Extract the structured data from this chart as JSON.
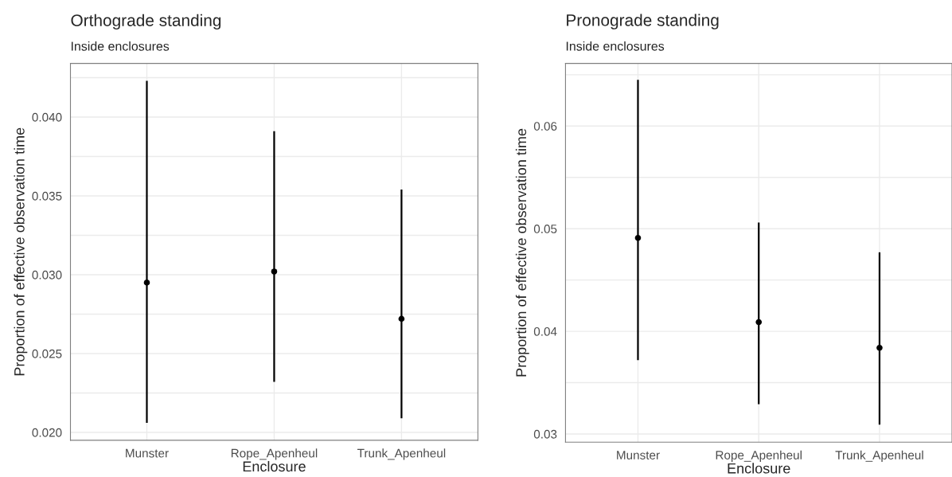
{
  "chart_data": [
    {
      "type": "scatter",
      "title": "Orthograde standing",
      "subtitle": "Inside enclosures",
      "xlabel": "Enclosure",
      "ylabel": "Proportion of effective observation time",
      "categories": [
        "Munster",
        "Rope_Apenheul",
        "Trunk_Apenheul"
      ],
      "series": [
        {
          "color": "#000000",
          "values": [
            0.0295,
            0.0302,
            0.0272
          ],
          "errors": [
            [
              0.0206,
              0.0423
            ],
            [
              0.0232,
              0.0391
            ],
            [
              0.0209,
              0.0354
            ]
          ]
        }
      ],
      "ylim": [
        0.0195,
        0.0434
      ],
      "yticks": [
        {
          "value": 0.02,
          "label": "0.020"
        },
        {
          "value": 0.025,
          "label": "0.025"
        },
        {
          "value": 0.03,
          "label": "0.030"
        },
        {
          "value": 0.035,
          "label": "0.035"
        },
        {
          "value": 0.04,
          "label": "0.040"
        }
      ],
      "grid": true,
      "marker": "circle"
    },
    {
      "type": "scatter",
      "title": "Pronograde standing",
      "subtitle": "Inside enclosures",
      "xlabel": "Enclosure",
      "ylabel": "Proportion of effective observation time",
      "categories": [
        "Munster",
        "Rope_Apenheul",
        "Trunk_Apenheul"
      ],
      "series": [
        {
          "color": "#000000",
          "values": [
            0.0491,
            0.0409,
            0.0384
          ],
          "errors": [
            [
              0.0372,
              0.0645
            ],
            [
              0.0329,
              0.0506
            ],
            [
              0.0309,
              0.0477
            ]
          ]
        }
      ],
      "ylim": [
        0.0292,
        0.0661
      ],
      "yticks": [
        0.03,
        0.04,
        0.05,
        0.06
      ],
      "grid": true,
      "marker": "circle"
    }
  ]
}
